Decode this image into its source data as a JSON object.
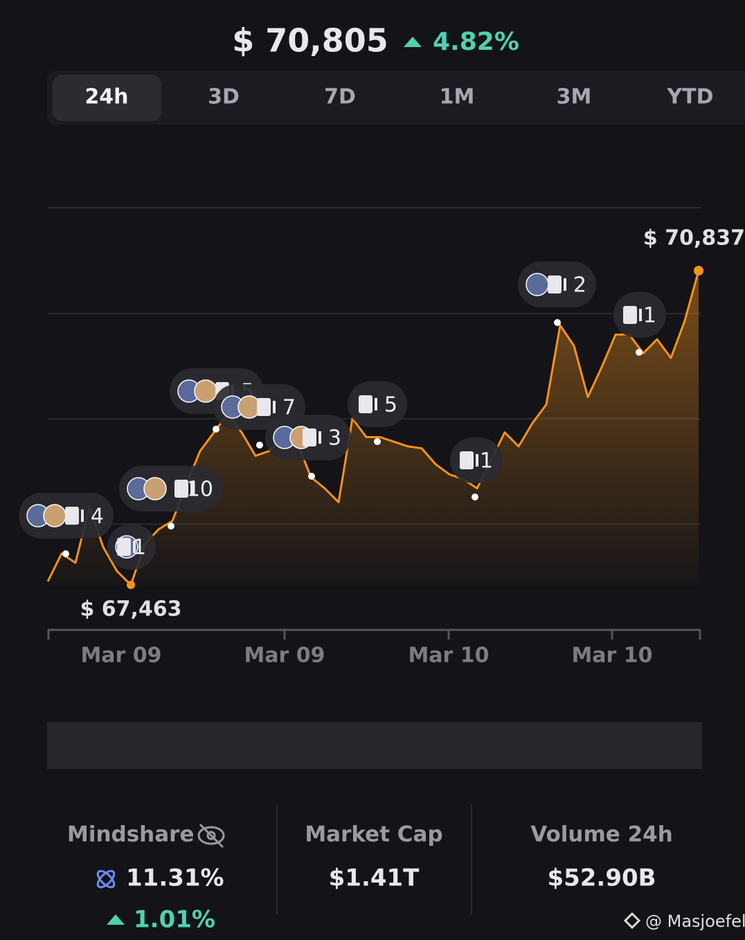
{
  "header": {
    "price": "$ 70,805",
    "change": "4.82%"
  },
  "tabs": [
    "24h",
    "3D",
    "7D",
    "1M",
    "3M",
    "YTD"
  ],
  "chart": {
    "type": "line",
    "color": "#f7931a",
    "x_labels": [
      "Mar 09",
      "Mar 09",
      "Mar 10",
      "Mar 10"
    ],
    "values": [
      67500,
      67800,
      67700,
      68300,
      67870,
      67610,
      67463,
      67900,
      68060,
      68150,
      68540,
      68900,
      69100,
      69300,
      69100,
      68850,
      68900,
      69050,
      69000,
      68620,
      68500,
      68350,
      69250,
      69050,
      69050,
      69000,
      68950,
      68930,
      68760,
      68650,
      68600,
      68500,
      68800,
      69100,
      68950,
      69200,
      69400,
      70250,
      70030,
      69480,
      69800,
      70150,
      70150,
      69950,
      70100,
      69900,
      70300,
      70837
    ],
    "low_label": "$ 67,463",
    "high_label": "$ 70,837",
    "events": [
      4,
      1,
      10,
      5,
      7,
      3,
      5,
      1,
      2,
      1
    ]
  },
  "stats": [
    {
      "label": "Mindshare",
      "value": "11.31%",
      "change": "1.01%"
    },
    {
      "label": "Market Cap",
      "value": "$1.41T"
    },
    {
      "label": "Volume 24h",
      "value": "$52.90B"
    }
  ],
  "watermark": "@ Masjoefel"
}
